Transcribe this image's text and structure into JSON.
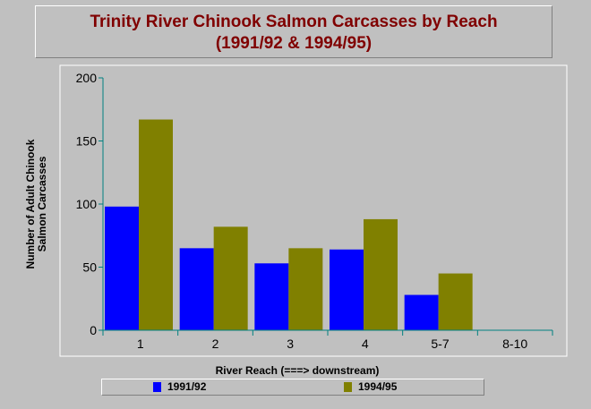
{
  "chart_data": {
    "type": "bar",
    "title": "Trinity River Chinook Salmon Carcasses by Reach",
    "subtitle": "(1991/92 & 1994/95)",
    "xlabel": "River Reach (===>  downstream)",
    "ylabel_lines": [
      "Number of Adult Chinook",
      "Salmon Carcasses"
    ],
    "categories": [
      "1",
      "2",
      "3",
      "4",
      "5-7",
      "8-10"
    ],
    "series": [
      {
        "name": "1991/92",
        "color": "#0000ff",
        "values": [
          98,
          65,
          53,
          64,
          28,
          0
        ]
      },
      {
        "name": "1994/95",
        "color": "#808000",
        "values": [
          167,
          82,
          65,
          88,
          45,
          0
        ]
      }
    ],
    "ylim": [
      0,
      200
    ],
    "yticks": [
      0,
      50,
      100,
      150,
      200
    ],
    "grid": false,
    "legend_position": "bottom"
  }
}
